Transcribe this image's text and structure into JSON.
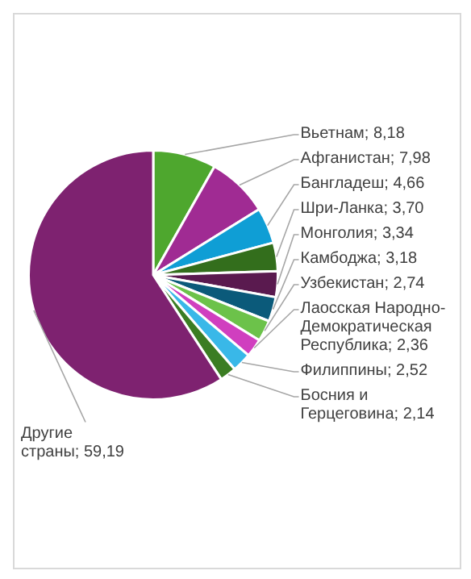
{
  "chart_data": {
    "type": "pie",
    "categories": [
      "Вьетнам",
      "Афганистан",
      "Бангладеш",
      "Шри-Ланка",
      "Монголия",
      "Камбоджа",
      "Узбекистан",
      "Лаосская Народно-Демократическая Республика",
      "Филиппины",
      "Босния и Герцеговина",
      "Другие страны"
    ],
    "values": [
      8.18,
      7.98,
      4.66,
      3.7,
      3.34,
      3.18,
      2.74,
      2.36,
      2.52,
      2.14,
      59.19
    ],
    "colors": [
      "#4ea72e",
      "#a02b93",
      "#0f9ed5",
      "#336e1c",
      "#5a1a4f",
      "#0b5a7a",
      "#6cc24a",
      "#d03fbf",
      "#39b8e8",
      "#3b7d23",
      "#7e2270"
    ],
    "value_labels": [
      "8,18",
      "7,98",
      "4,66",
      "3,70",
      "3,34",
      "3,18",
      "2,74",
      "2,36",
      "2,52",
      "2,14",
      "59,19"
    ],
    "legend": false
  }
}
